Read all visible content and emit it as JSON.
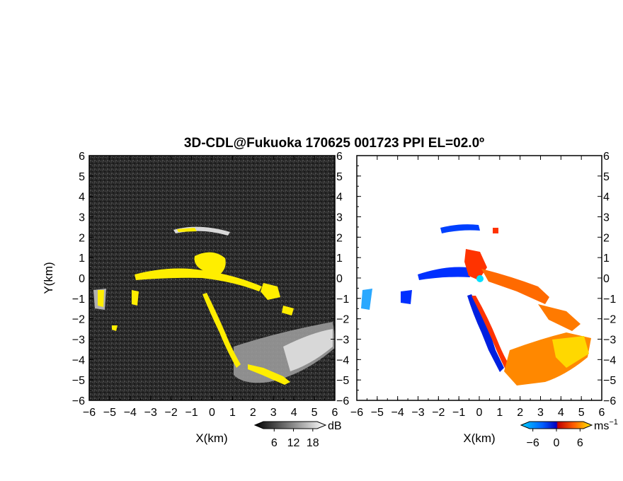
{
  "title": "3D-CDL@Fukuoka 170625 001723 PPI EL=02.0º",
  "colors": {
    "background_left": "#262626",
    "echo_gray": "#d0d0d0",
    "echo_yellow": "#ffee00",
    "vel_blue": "#0033ff",
    "vel_cyan": "#2aa8ff",
    "vel_red": "#ff3300",
    "vel_orange": "#ff7a00",
    "vel_yellow": "#ffdd00"
  },
  "chart_data": [
    {
      "type": "heatmap",
      "panel": "reflectivity",
      "xlabel": "X(km)",
      "ylabel": "Y(km)",
      "xlim": [
        -6,
        6
      ],
      "ylim": [
        -6,
        6
      ],
      "x_ticks": [
        "−6",
        "−5",
        "−4",
        "−3",
        "−2",
        "−1",
        "0",
        "1",
        "2",
        "3",
        "4",
        "5",
        "6"
      ],
      "y_ticks": [
        "6",
        "5",
        "4",
        "3",
        "2",
        "1",
        "0",
        "−1",
        "−2",
        "−3",
        "−4",
        "−5",
        "−6"
      ],
      "colorbar": {
        "ticks": [
          "6",
          "12",
          "18"
        ],
        "unit": "dB",
        "range": [
          0,
          22
        ]
      }
    },
    {
      "type": "heatmap",
      "panel": "doppler_velocity",
      "xlabel": "X(km)",
      "xlim": [
        -6,
        6
      ],
      "ylim": [
        -6,
        6
      ],
      "x_ticks": [
        "−6",
        "−5",
        "−4",
        "−3",
        "−2",
        "−1",
        "0",
        "1",
        "2",
        "3",
        "4",
        "5",
        "6"
      ],
      "y_ticks": [
        "6",
        "5",
        "4",
        "3",
        "2",
        "1",
        "0",
        "−1",
        "−2",
        "−3",
        "−4",
        "−5",
        "−6"
      ],
      "colorbar": {
        "ticks": [
          "−6",
          "0",
          "6"
        ],
        "unit": "ms",
        "unit_exp": "−1",
        "range": [
          -9,
          9
        ]
      }
    }
  ]
}
